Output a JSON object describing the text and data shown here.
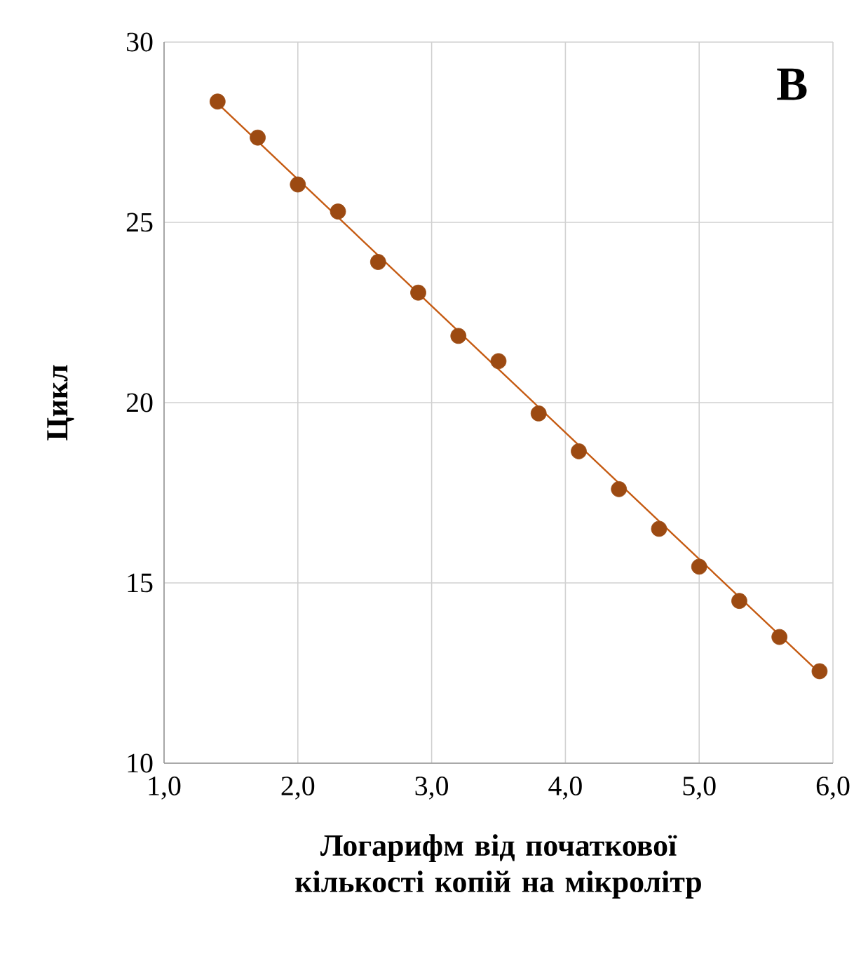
{
  "chart_data": {
    "type": "scatter",
    "xlabel": "Логарифм від початкової кількості копій на мікролітр",
    "ylabel": "Цикл",
    "annotations": [
      "В"
    ],
    "series": [
      {
        "color": "#9c4a12",
        "marker": "circle",
        "x": [
          1.4,
          1.7,
          2.0,
          2.3,
          2.6,
          2.9,
          3.2,
          3.5,
          3.8,
          4.1,
          4.4,
          4.7,
          5.0,
          5.3,
          5.6,
          5.9
        ],
        "values": [
          28.35,
          27.35,
          26.05,
          25.3,
          23.9,
          23.05,
          21.85,
          21.15,
          19.7,
          18.65,
          17.6,
          16.5,
          15.45,
          14.5,
          13.5,
          12.55
        ]
      },
      {
        "type": "line",
        "color": "#c55a11",
        "x": [
          1.4,
          5.9
        ],
        "values": [
          28.3,
          12.5
        ]
      }
    ],
    "xlim": [
      1,
      6
    ],
    "ylim": [
      10,
      30
    ],
    "xticks": [
      {
        "value": 1,
        "label": "1,0"
      },
      {
        "value": 2,
        "label": "2,0"
      },
      {
        "value": 3,
        "label": "3,0"
      },
      {
        "value": 4,
        "label": "4,0"
      },
      {
        "value": 5,
        "label": "5,0"
      },
      {
        "value": 6,
        "label": "6,0"
      }
    ],
    "yticks": [
      10,
      15,
      20,
      25,
      30
    ],
    "grid": true
  }
}
